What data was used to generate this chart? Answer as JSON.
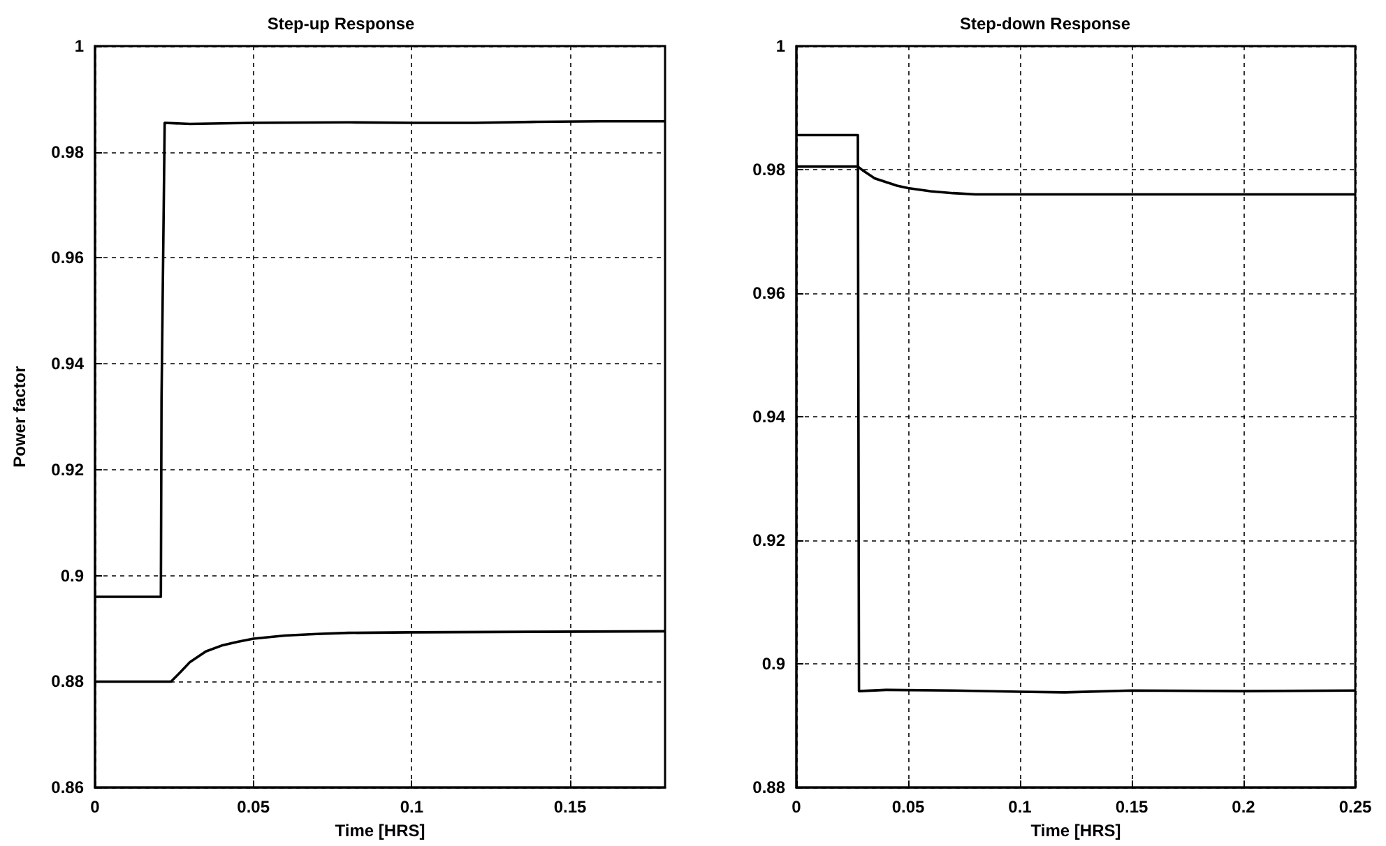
{
  "chart_data": [
    {
      "type": "line",
      "title": "Step-up Response",
      "xlabel": "Time [HRS]",
      "ylabel": "Power factor",
      "xlim": [
        0,
        0.18
      ],
      "xticks": [
        0,
        0.05,
        0.1,
        0.15
      ],
      "ylim": [
        0.86,
        1
      ],
      "yticks": [
        0.86,
        0.88,
        0.9,
        0.92,
        0.94,
        0.96,
        0.98,
        1
      ],
      "grid": true,
      "marker": "none",
      "line_style": "solid",
      "series": [
        {
          "color": "#000000",
          "x": [
            0,
            0.01,
            0.0208,
            0.021,
            0.022,
            0.03,
            0.05,
            0.08,
            0.1,
            0.12,
            0.14,
            0.16,
            0.18
          ],
          "values": [
            0.896,
            0.896,
            0.896,
            0.933,
            0.9855,
            0.9853,
            0.9855,
            0.9856,
            0.9855,
            0.9855,
            0.9857,
            0.9858,
            0.9858
          ]
        },
        {
          "color": "#000000",
          "x": [
            0,
            0.024,
            0.027,
            0.03,
            0.035,
            0.04,
            0.045,
            0.05,
            0.06,
            0.07,
            0.08,
            0.1,
            0.14,
            0.18
          ],
          "values": [
            0.88,
            0.88,
            0.8818,
            0.8837,
            0.8857,
            0.8868,
            0.8875,
            0.8881,
            0.8887,
            0.889,
            0.8892,
            0.8893,
            0.8894,
            0.8895
          ]
        }
      ]
    },
    {
      "type": "line",
      "title": "Step-down Response",
      "xlabel": "Time [HRS]",
      "xlim": [
        0,
        0.25
      ],
      "xticks": [
        0,
        0.05,
        0.1,
        0.15,
        0.2,
        0.25
      ],
      "ylim": [
        0.88,
        1
      ],
      "yticks": [
        0.88,
        0.9,
        0.92,
        0.94,
        0.96,
        0.98,
        1
      ],
      "grid": true,
      "marker": "none",
      "line_style": "solid",
      "series": [
        {
          "color": "#000000",
          "x": [
            0,
            0.0275,
            0.028,
            0.04,
            0.07,
            0.1,
            0.12,
            0.15,
            0.2,
            0.25
          ],
          "values": [
            0.9856,
            0.9856,
            0.8956,
            0.8958,
            0.8957,
            0.8955,
            0.8954,
            0.8957,
            0.8956,
            0.8957
          ]
        },
        {
          "color": "#000000",
          "x": [
            0,
            0.0275,
            0.03,
            0.035,
            0.04,
            0.045,
            0.05,
            0.06,
            0.07,
            0.08,
            0.12,
            0.2,
            0.25
          ],
          "values": [
            0.9805,
            0.9805,
            0.9798,
            0.9786,
            0.978,
            0.9774,
            0.977,
            0.9765,
            0.9762,
            0.976,
            0.976,
            0.976,
            0.976
          ]
        }
      ]
    }
  ]
}
